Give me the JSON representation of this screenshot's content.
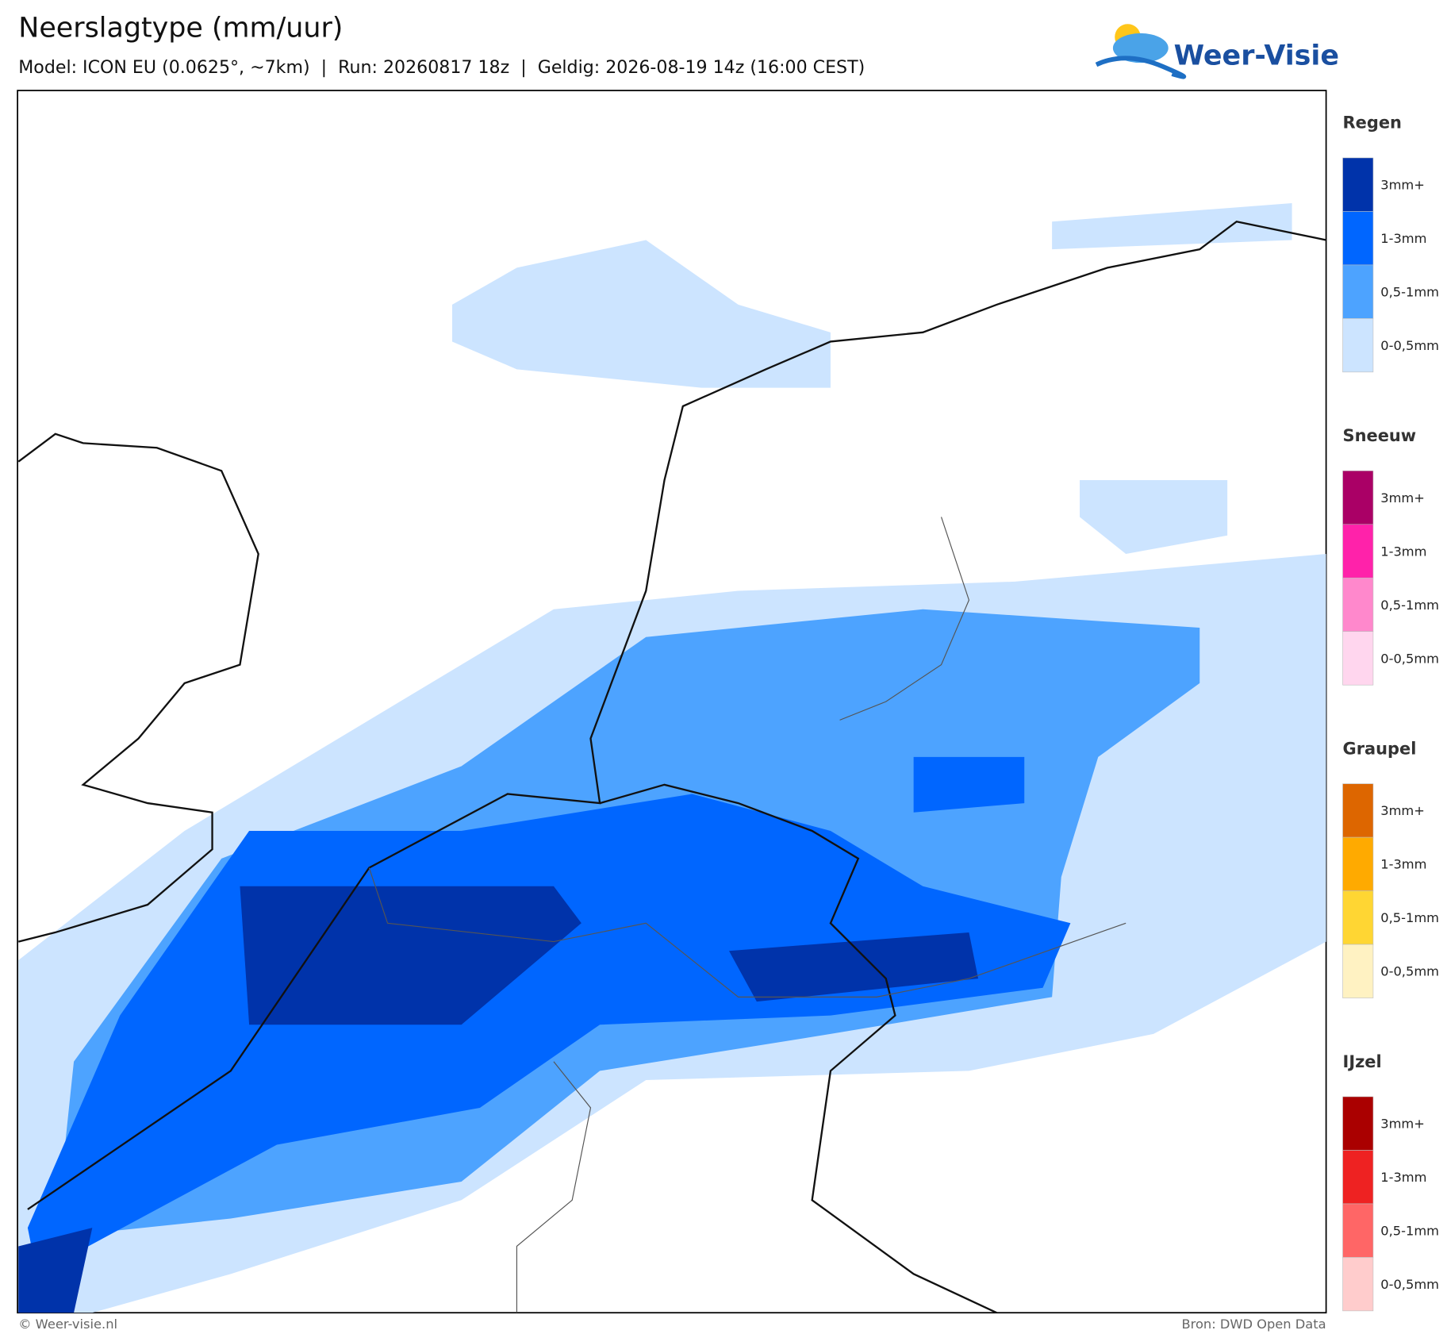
{
  "header": {
    "title": "Neerslagtype (mm/uur)",
    "subtitle": "Model: ICON EU (0.0625°, ~7km)  |  Run: 20260817 18z  |  Geldig: 2026-08-19 14z (16:00 CEST)"
  },
  "logo": {
    "text": "Weer-Visie"
  },
  "legend": [
    {
      "title": "Regen",
      "items": [
        {
          "label": "3mm+",
          "color": "#0033aa"
        },
        {
          "label": "1-3mm",
          "color": "#0066ff"
        },
        {
          "label": "0,5-1mm",
          "color": "#4da3ff"
        },
        {
          "label": "0-0,5mm",
          "color": "#cce4ff"
        }
      ]
    },
    {
      "title": "Sneeuw",
      "items": [
        {
          "label": "3mm+",
          "color": "#aa0066"
        },
        {
          "label": "1-3mm",
          "color": "#ff22aa"
        },
        {
          "label": "0,5-1mm",
          "color": "#ff88cc"
        },
        {
          "label": "0-0,5mm",
          "color": "#ffd6ee"
        }
      ]
    },
    {
      "title": "Graupel",
      "items": [
        {
          "label": "3mm+",
          "color": "#dd6600"
        },
        {
          "label": "1-3mm",
          "color": "#ffaa00"
        },
        {
          "label": "0,5-1mm",
          "color": "#ffd633"
        },
        {
          "label": "0-0,5mm",
          "color": "#fff2c2"
        }
      ]
    },
    {
      "title": "IJzel",
      "items": [
        {
          "label": "3mm+",
          "color": "#aa0000"
        },
        {
          "label": "1-3mm",
          "color": "#ee2222"
        },
        {
          "label": "0,5-1mm",
          "color": "#ff6666"
        },
        {
          "label": "0-0,5mm",
          "color": "#ffcccc"
        }
      ]
    }
  ],
  "footer": {
    "left": "© Weer-visie.nl",
    "right": "Bron: DWD Open Data"
  }
}
